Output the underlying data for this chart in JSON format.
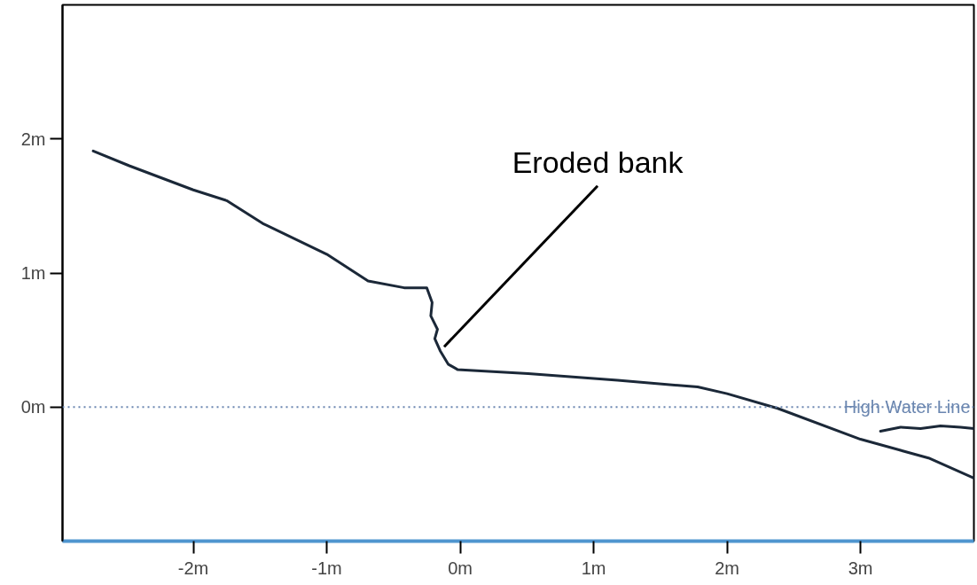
{
  "chart_data": {
    "type": "line",
    "xlim": [
      -2.98,
      3.85
    ],
    "ylim": [
      -1.0,
      3.0
    ],
    "xticks": [
      {
        "value": -2,
        "label": "-2m"
      },
      {
        "value": -1,
        "label": "-1m"
      },
      {
        "value": 0,
        "label": "0m"
      },
      {
        "value": 1,
        "label": "1m"
      },
      {
        "value": 2,
        "label": "2m"
      },
      {
        "value": 3,
        "label": "3m"
      }
    ],
    "yticks": [
      {
        "value": 0,
        "label": "0m"
      },
      {
        "value": 1,
        "label": "1m"
      },
      {
        "value": 2,
        "label": "2m"
      }
    ],
    "line_style": "solid",
    "series": [
      {
        "color": "#1b2838",
        "x": [
          -2.75,
          -2.48,
          -2.0,
          -1.75,
          -1.48,
          -1.0,
          -0.69,
          -0.42,
          -0.25,
          -0.21,
          -0.22,
          -0.17,
          -0.19,
          -0.15,
          -0.09,
          -0.02,
          0.51,
          1.18,
          1.78,
          2.0,
          2.38,
          3.0,
          3.51,
          3.85
        ],
        "values": [
          1.91,
          1.8,
          1.62,
          1.54,
          1.37,
          1.14,
          0.94,
          0.89,
          0.89,
          0.78,
          0.68,
          0.58,
          0.51,
          0.42,
          0.32,
          0.28,
          0.25,
          0.2,
          0.15,
          0.1,
          -0.01,
          -0.24,
          -0.38,
          -0.53
        ]
      },
      {
        "color": "#1b2838",
        "x": [
          3.15,
          3.3,
          3.45,
          3.6,
          3.75,
          3.85
        ],
        "values": [
          -0.18,
          -0.15,
          -0.16,
          -0.14,
          -0.15,
          -0.16
        ]
      }
    ],
    "ref_lines": [
      {
        "axis": "y",
        "value": 0,
        "label": "High Water Line",
        "color": "#6a86b0",
        "line_style": "dotted"
      }
    ],
    "annotations": [
      {
        "text": "Eroded bank",
        "x": -0.12,
        "y": 0.45
      }
    ]
  }
}
